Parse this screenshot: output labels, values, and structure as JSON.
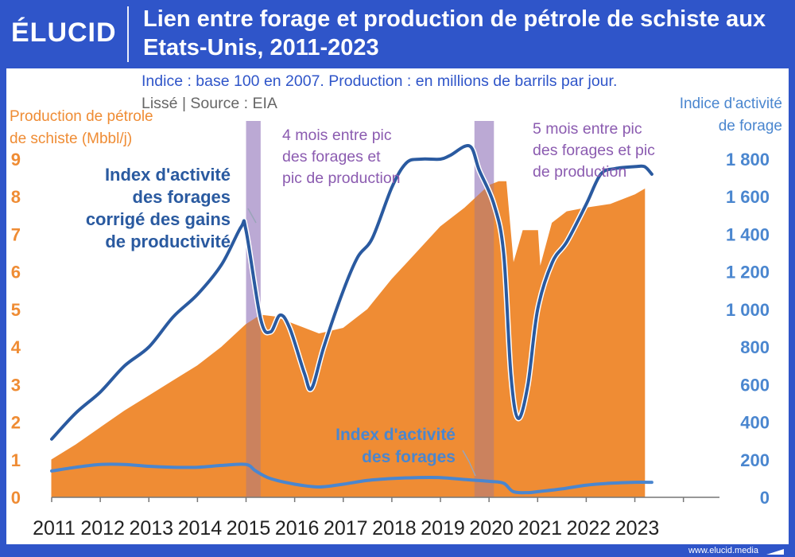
{
  "brand": {
    "logo_text": "ÉLUCID",
    "footer_url": "www.elucid.media"
  },
  "colors": {
    "frame": "#2f55c9",
    "production": "#ef8c34",
    "index_corrected": "#2a5aa0",
    "index": "#4a86cf",
    "annotation": "#8b5bb0",
    "peak_band": "#b49ad6"
  },
  "chart_data": {
    "type": "area",
    "title": "Lien entre forage et production de pétrole de schiste aux Etats-Unis, 2011-2023",
    "subtitle": "Indice : base 100 en 2007. Production : en millions de barrils par jour.",
    "subtitle2": "Lissé  |  Source : EIA",
    "ylabel_left": "Production de pétrole de schiste (Mbbl/j)",
    "ylabel_left_lines": [
      "Production de pétrole",
      "de schiste (Mbbl/j)"
    ],
    "ylabel_right_lines": [
      "Indice d'activité",
      "de forage"
    ],
    "xlim": [
      2011,
      2024.3
    ],
    "ylim_left": [
      0,
      9
    ],
    "ylim_right": [
      0,
      1800
    ],
    "x_ticks": [
      "2011",
      "2012",
      "2013",
      "2014",
      "2015",
      "2016",
      "2017",
      "2018",
      "2019",
      "2020",
      "2021",
      "2022",
      "2023"
    ],
    "y_left_ticks": [
      "0",
      "1",
      "2",
      "3",
      "4",
      "5",
      "6",
      "7",
      "8",
      "9"
    ],
    "y_right_ticks": [
      "0",
      "200",
      "400",
      "600",
      "800",
      "1 000",
      "1 200",
      "1 400",
      "1 600",
      "1 800"
    ],
    "grid": false,
    "peak_bands": [
      {
        "x0": 2015.0,
        "x1": 2015.3,
        "label": [
          "4 mois entre pic",
          "des forages et",
          "pic de production"
        ]
      },
      {
        "x0": 2019.7,
        "x1": 2020.1,
        "label": [
          "5 mois entre pic",
          "des forages et pic",
          "de production"
        ]
      }
    ],
    "series": [
      {
        "name": "Production de pétrole de schiste",
        "axis": "left",
        "style": "area",
        "points": [
          [
            2011.0,
            1.0
          ],
          [
            2011.5,
            1.4
          ],
          [
            2012.0,
            1.85
          ],
          [
            2012.5,
            2.3
          ],
          [
            2013.0,
            2.7
          ],
          [
            2013.5,
            3.1
          ],
          [
            2014.0,
            3.5
          ],
          [
            2014.5,
            4.0
          ],
          [
            2015.0,
            4.6
          ],
          [
            2015.3,
            4.85
          ],
          [
            2015.6,
            4.8
          ],
          [
            2016.0,
            4.6
          ],
          [
            2016.5,
            4.35
          ],
          [
            2017.0,
            4.5
          ],
          [
            2017.5,
            5.0
          ],
          [
            2018.0,
            5.8
          ],
          [
            2018.5,
            6.5
          ],
          [
            2019.0,
            7.2
          ],
          [
            2019.5,
            7.7
          ],
          [
            2020.0,
            8.3
          ],
          [
            2020.2,
            8.4
          ],
          [
            2020.35,
            8.4
          ],
          [
            2020.5,
            6.2
          ],
          [
            2020.7,
            7.1
          ],
          [
            2021.0,
            7.1
          ],
          [
            2021.05,
            6.1
          ],
          [
            2021.3,
            7.3
          ],
          [
            2021.6,
            7.6
          ],
          [
            2022.0,
            7.7
          ],
          [
            2022.5,
            7.8
          ],
          [
            2023.0,
            8.05
          ],
          [
            2023.2,
            8.2
          ]
        ]
      },
      {
        "name": "Index d'activité des forages corrigé des gains de productivité",
        "label_lines": [
          "Index d'activité",
          "des forages",
          "corrigé des gains",
          "de productivité"
        ],
        "axis": "right",
        "style": "line",
        "points": [
          [
            2011.0,
            310
          ],
          [
            2011.5,
            450
          ],
          [
            2012.0,
            560
          ],
          [
            2012.5,
            700
          ],
          [
            2013.0,
            800
          ],
          [
            2013.5,
            960
          ],
          [
            2014.0,
            1080
          ],
          [
            2014.5,
            1240
          ],
          [
            2014.9,
            1440
          ],
          [
            2015.0,
            1420
          ],
          [
            2015.3,
            950
          ],
          [
            2015.5,
            880
          ],
          [
            2015.7,
            970
          ],
          [
            2015.9,
            900
          ],
          [
            2016.2,
            660
          ],
          [
            2016.35,
            580
          ],
          [
            2016.6,
            800
          ],
          [
            2017.0,
            1100
          ],
          [
            2017.3,
            1280
          ],
          [
            2017.6,
            1380
          ],
          [
            2018.0,
            1650
          ],
          [
            2018.3,
            1780
          ],
          [
            2018.6,
            1800
          ],
          [
            2019.0,
            1800
          ],
          [
            2019.2,
            1820
          ],
          [
            2019.6,
            1870
          ],
          [
            2019.8,
            1740
          ],
          [
            2020.1,
            1560
          ],
          [
            2020.3,
            1300
          ],
          [
            2020.45,
            650
          ],
          [
            2020.6,
            420
          ],
          [
            2020.8,
            600
          ],
          [
            2021.0,
            1000
          ],
          [
            2021.3,
            1250
          ],
          [
            2021.6,
            1360
          ],
          [
            2022.0,
            1560
          ],
          [
            2022.3,
            1720
          ],
          [
            2022.6,
            1750
          ],
          [
            2023.0,
            1760
          ],
          [
            2023.2,
            1760
          ],
          [
            2023.35,
            1720
          ]
        ]
      },
      {
        "name": "Index d'activité des forages",
        "label_lines": [
          "Index d'activité",
          "des forages"
        ],
        "axis": "right",
        "style": "line",
        "points": [
          [
            2011.0,
            140
          ],
          [
            2011.5,
            160
          ],
          [
            2012.0,
            175
          ],
          [
            2012.5,
            175
          ],
          [
            2013.0,
            165
          ],
          [
            2013.5,
            160
          ],
          [
            2014.0,
            160
          ],
          [
            2014.5,
            170
          ],
          [
            2015.0,
            175
          ],
          [
            2015.2,
            140
          ],
          [
            2015.5,
            100
          ],
          [
            2016.0,
            70
          ],
          [
            2016.5,
            55
          ],
          [
            2017.0,
            70
          ],
          [
            2017.5,
            90
          ],
          [
            2018.0,
            100
          ],
          [
            2018.5,
            105
          ],
          [
            2019.0,
            105
          ],
          [
            2019.5,
            95
          ],
          [
            2020.0,
            85
          ],
          [
            2020.3,
            75
          ],
          [
            2020.5,
            30
          ],
          [
            2020.8,
            25
          ],
          [
            2021.0,
            30
          ],
          [
            2021.5,
            45
          ],
          [
            2022.0,
            65
          ],
          [
            2022.5,
            75
          ],
          [
            2023.0,
            80
          ],
          [
            2023.35,
            80
          ]
        ]
      }
    ]
  }
}
